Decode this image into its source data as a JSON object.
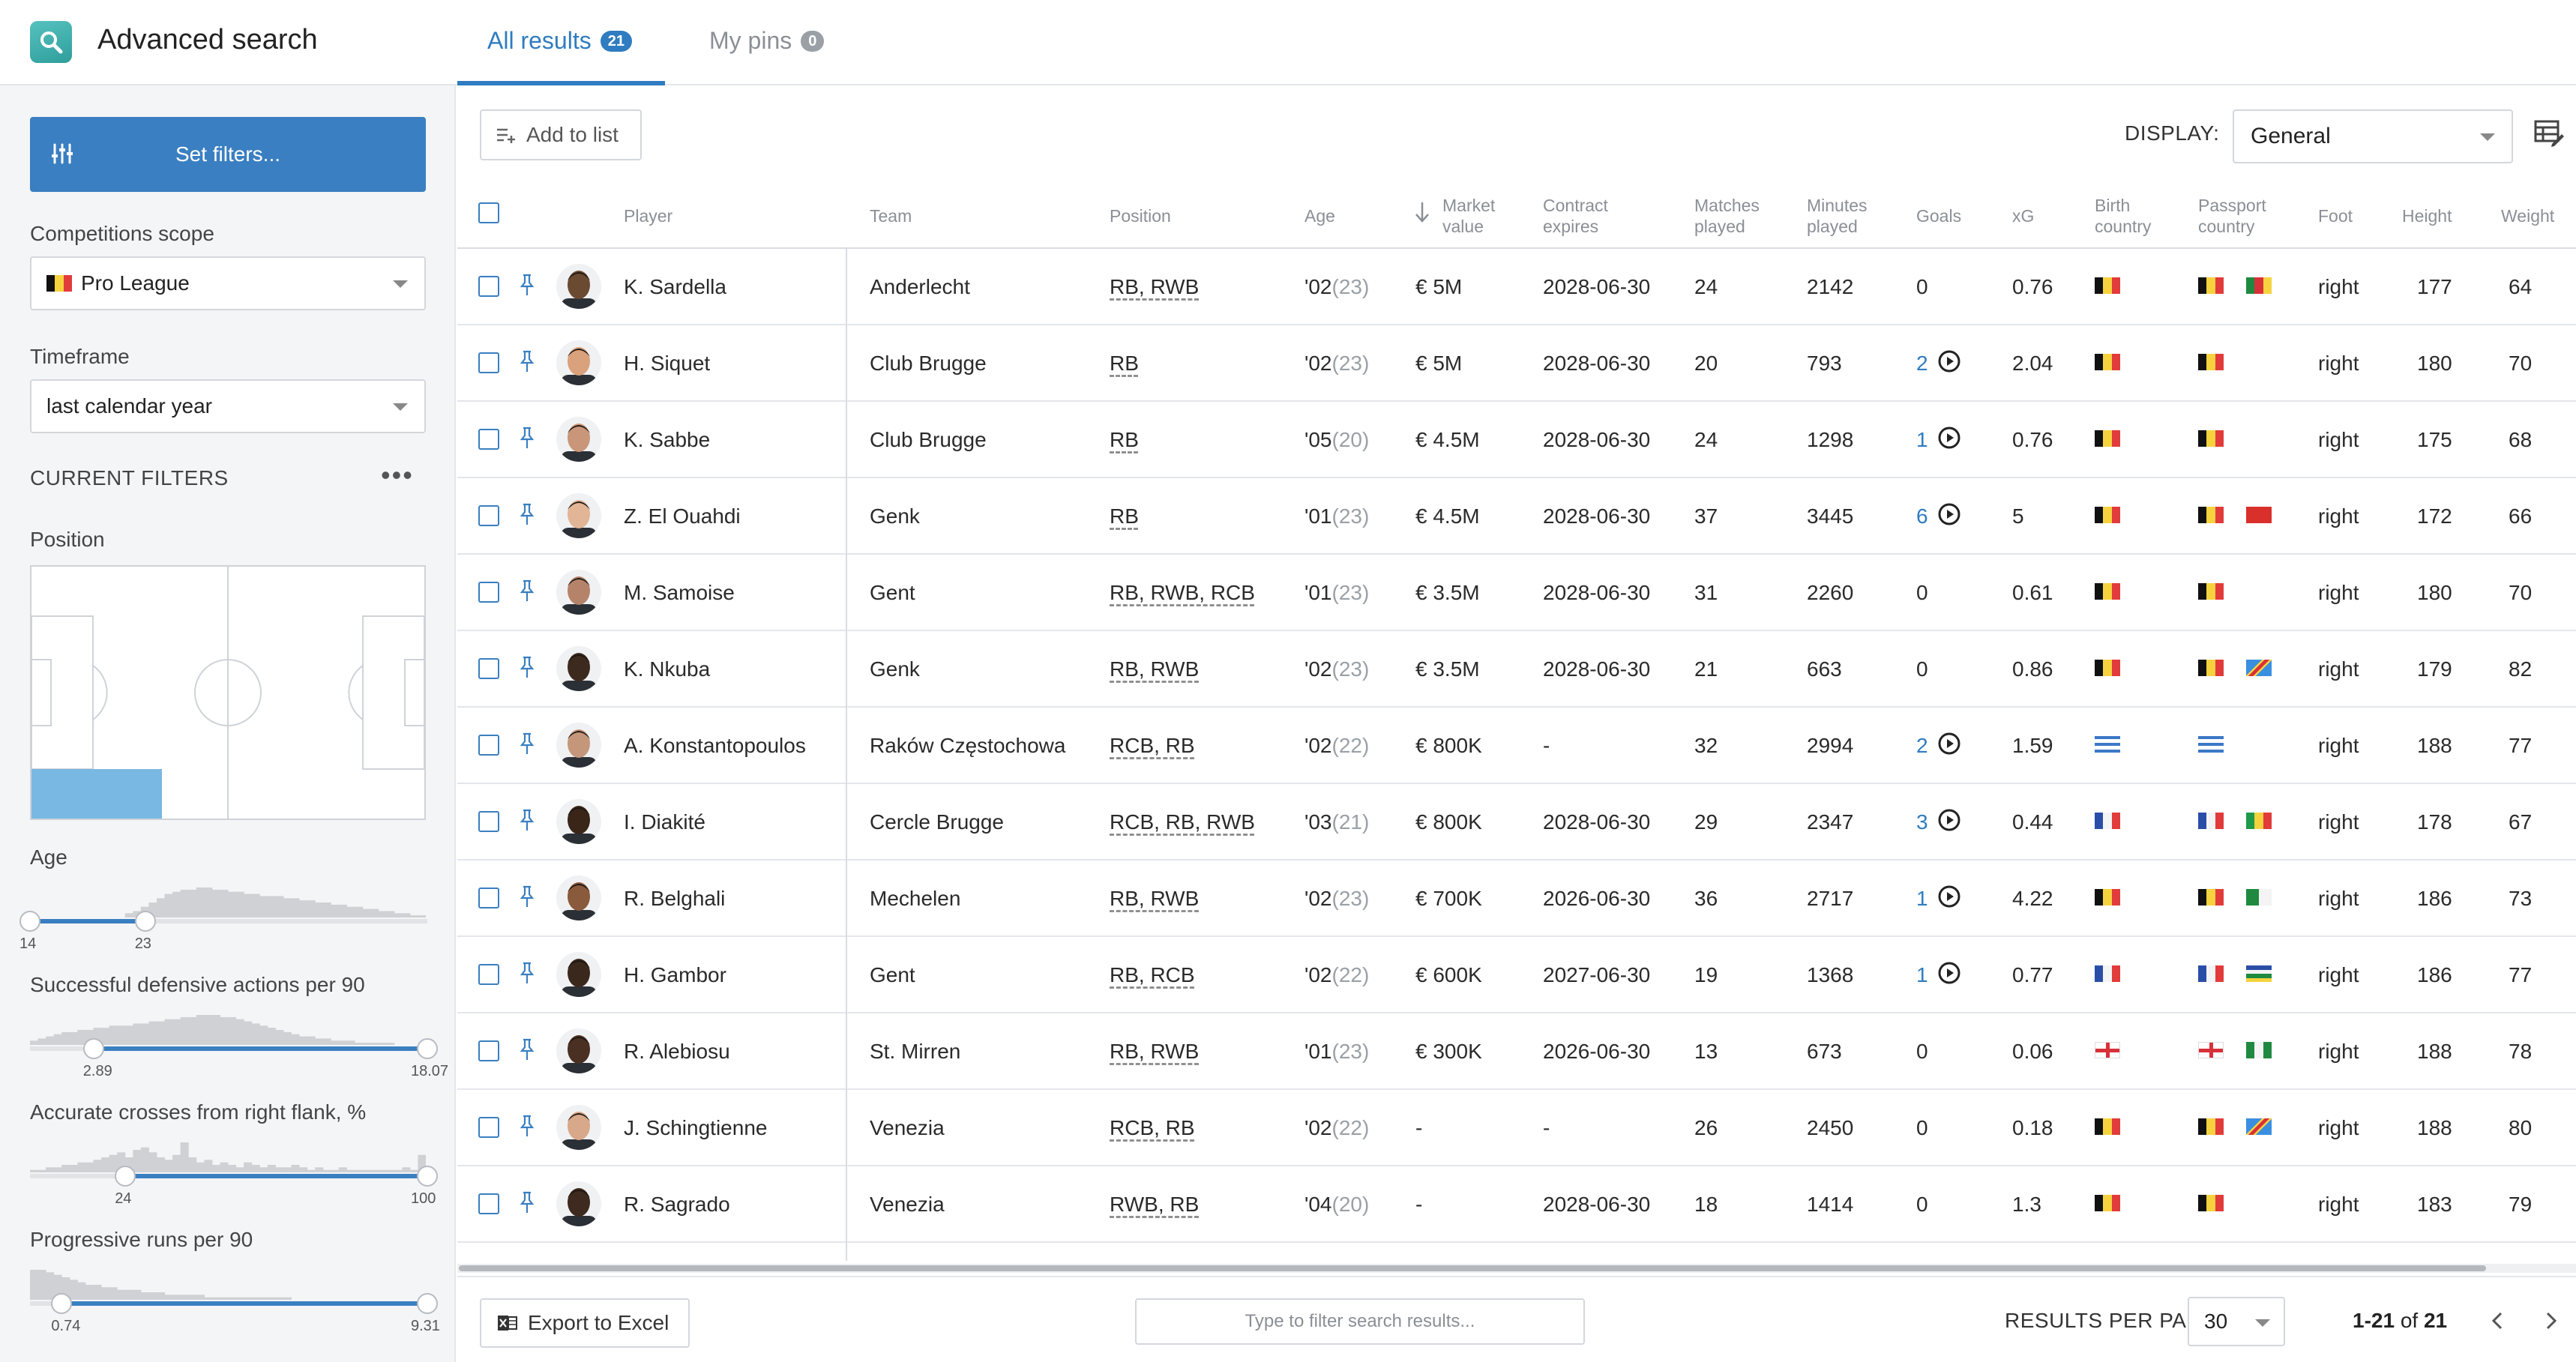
{
  "header": {
    "title": "Advanced search",
    "tabs": [
      {
        "label": "All results",
        "count": "21",
        "active": true
      },
      {
        "label": "My pins",
        "count": "0",
        "active": false
      }
    ]
  },
  "sidebar": {
    "set_filters_label": "Set filters...",
    "competitions_label": "Competitions scope",
    "competition_value": "Pro League",
    "timeframe_label": "Timeframe",
    "timeframe_value": "last calendar year",
    "current_filters_label": "CURRENT FILTERS",
    "position_label": "Position",
    "filters": [
      {
        "label": "Age",
        "min_label": "14",
        "max_label": "23",
        "low": 0.0,
        "high": 0.29
      },
      {
        "label": "Successful defensive actions per 90",
        "min_label": "2.89",
        "max_label": "18.07",
        "low": 0.16,
        "high": 1.0
      },
      {
        "label": "Accurate crosses from right flank, %",
        "min_label": "24",
        "max_label": "100",
        "low": 0.24,
        "high": 1.0
      },
      {
        "label": "Progressive runs per 90",
        "min_label": "0.74",
        "max_label": "9.31",
        "low": 0.08,
        "high": 1.0
      }
    ]
  },
  "toolbar": {
    "add_to_list_label": "Add to list",
    "display_label": "DISPLAY:",
    "display_value": "General"
  },
  "table": {
    "columns": {
      "player": "Player",
      "team": "Team",
      "position": "Position",
      "age": "Age",
      "market_value_1": "Market",
      "market_value_2": "value",
      "contract_1": "Contract",
      "contract_2": "expires",
      "matches_1": "Matches",
      "matches_2": "played",
      "minutes_1": "Minutes",
      "minutes_2": "played",
      "goals": "Goals",
      "xg": "xG",
      "birth_1": "Birth",
      "birth_2": "country",
      "passport_1": "Passport",
      "passport_2": "country",
      "foot": "Foot",
      "height": "Height",
      "weight": "Weight"
    },
    "rows": [
      {
        "player": "K. Sardella",
        "team": "Anderlecht",
        "position": "RB, RWB",
        "birth_year": "'02",
        "age": "(23)",
        "market_value": "€ 5M",
        "contract": "2028-06-30",
        "matches": "24",
        "minutes": "2142",
        "goals": "0",
        "goals_link": false,
        "xg": "0.76",
        "birth_flag": "be",
        "passport_flags": [
          "be",
          "cm"
        ],
        "foot": "right",
        "height": "177",
        "weight": "64",
        "skin": "#6b4a32"
      },
      {
        "player": "H. Siquet",
        "team": "Club Brugge",
        "position": "RB",
        "birth_year": "'02",
        "age": "(23)",
        "market_value": "€ 5M",
        "contract": "2028-06-30",
        "matches": "20",
        "minutes": "793",
        "goals": "2",
        "goals_link": true,
        "xg": "2.04",
        "birth_flag": "be",
        "passport_flags": [
          "be"
        ],
        "foot": "right",
        "height": "180",
        "weight": "70",
        "skin": "#d9a27c"
      },
      {
        "player": "K. Sabbe",
        "team": "Club Brugge",
        "position": "RB",
        "birth_year": "'05",
        "age": "(20)",
        "market_value": "€ 4.5M",
        "contract": "2028-06-30",
        "matches": "24",
        "minutes": "1298",
        "goals": "1",
        "goals_link": true,
        "xg": "0.76",
        "birth_flag": "be",
        "passport_flags": [
          "be"
        ],
        "foot": "right",
        "height": "175",
        "weight": "68",
        "skin": "#c9967a"
      },
      {
        "player": "Z. El Ouahdi",
        "team": "Genk",
        "position": "RB",
        "birth_year": "'01",
        "age": "(23)",
        "market_value": "€ 4.5M",
        "contract": "2028-06-30",
        "matches": "37",
        "minutes": "3445",
        "goals": "6",
        "goals_link": true,
        "xg": "5",
        "birth_flag": "be",
        "passport_flags": [
          "be",
          "ma"
        ],
        "foot": "right",
        "height": "172",
        "weight": "66",
        "skin": "#e1b596"
      },
      {
        "player": "M. Samoise",
        "team": "Gent",
        "position": "RB, RWB, RCB",
        "birth_year": "'01",
        "age": "(23)",
        "market_value": "€ 3.5M",
        "contract": "2028-06-30",
        "matches": "31",
        "minutes": "2260",
        "goals": "0",
        "goals_link": false,
        "xg": "0.61",
        "birth_flag": "be",
        "passport_flags": [
          "be"
        ],
        "foot": "right",
        "height": "180",
        "weight": "70",
        "skin": "#b5836a"
      },
      {
        "player": "K. Nkuba",
        "team": "Genk",
        "position": "RB, RWB",
        "birth_year": "'02",
        "age": "(23)",
        "market_value": "€ 3.5M",
        "contract": "2028-06-30",
        "matches": "21",
        "minutes": "663",
        "goals": "0",
        "goals_link": false,
        "xg": "0.86",
        "birth_flag": "be",
        "passport_flags": [
          "be",
          "cd"
        ],
        "foot": "right",
        "height": "179",
        "weight": "82",
        "skin": "#3d2a1f"
      },
      {
        "player": "A. Konstantopoulos",
        "team": "Raków Częstochowa",
        "position": "RCB, RB",
        "birth_year": "'02",
        "age": "(22)",
        "market_value": "€ 800K",
        "contract": "-",
        "matches": "32",
        "minutes": "2994",
        "goals": "2",
        "goals_link": true,
        "xg": "1.59",
        "birth_flag": "gr",
        "passport_flags": [
          "gr"
        ],
        "foot": "right",
        "height": "188",
        "weight": "77",
        "skin": "#c4977b"
      },
      {
        "player": "I. Diakité",
        "team": "Cercle Brugge",
        "position": "RCB, RB, RWB",
        "birth_year": "'03",
        "age": "(21)",
        "market_value": "€ 800K",
        "contract": "2028-06-30",
        "matches": "29",
        "minutes": "2347",
        "goals": "3",
        "goals_link": true,
        "xg": "0.44",
        "birth_flag": "fr",
        "passport_flags": [
          "fr",
          "ml"
        ],
        "foot": "right",
        "height": "178",
        "weight": "67",
        "skin": "#3a2619"
      },
      {
        "player": "R. Belghali",
        "team": "Mechelen",
        "position": "RB, RWB",
        "birth_year": "'02",
        "age": "(23)",
        "market_value": "€ 700K",
        "contract": "2026-06-30",
        "matches": "36",
        "minutes": "2717",
        "goals": "1",
        "goals_link": true,
        "xg": "4.22",
        "birth_flag": "be",
        "passport_flags": [
          "be",
          "dz"
        ],
        "foot": "right",
        "height": "186",
        "weight": "73",
        "skin": "#8a5a3c"
      },
      {
        "player": "H. Gambor",
        "team": "Gent",
        "position": "RB, RCB",
        "birth_year": "'02",
        "age": "(22)",
        "market_value": "€ 600K",
        "contract": "2027-06-30",
        "matches": "19",
        "minutes": "1368",
        "goals": "1",
        "goals_link": true,
        "xg": "0.77",
        "birth_flag": "fr",
        "passport_flags": [
          "fr",
          "cf"
        ],
        "foot": "right",
        "height": "186",
        "weight": "77",
        "skin": "#3b281d"
      },
      {
        "player": "R. Alebiosu",
        "team": "St. Mirren",
        "position": "RB, RWB",
        "birth_year": "'01",
        "age": "(23)",
        "market_value": "€ 300K",
        "contract": "2026-06-30",
        "matches": "13",
        "minutes": "673",
        "goals": "0",
        "goals_link": false,
        "xg": "0.06",
        "birth_flag": "en",
        "passport_flags": [
          "en",
          "ng"
        ],
        "foot": "right",
        "height": "188",
        "weight": "78",
        "skin": "#4a3022"
      },
      {
        "player": "J. Schingtienne",
        "team": "Venezia",
        "position": "RCB, RB",
        "birth_year": "'02",
        "age": "(22)",
        "market_value": "-",
        "contract": "-",
        "matches": "26",
        "minutes": "2450",
        "goals": "0",
        "goals_link": false,
        "xg": "0.18",
        "birth_flag": "be",
        "passport_flags": [
          "be",
          "cd"
        ],
        "foot": "right",
        "height": "188",
        "weight": "80",
        "skin": "#d8a88a"
      },
      {
        "player": "R. Sagrado",
        "team": "Venezia",
        "position": "RWB, RB",
        "birth_year": "'04",
        "age": "(20)",
        "market_value": "-",
        "contract": "2028-06-30",
        "matches": "18",
        "minutes": "1414",
        "goals": "0",
        "goals_link": false,
        "xg": "1.3",
        "birth_flag": "be",
        "passport_flags": [
          "be"
        ],
        "foot": "right",
        "height": "183",
        "weight": "79",
        "skin": "#3e2a1e"
      }
    ]
  },
  "footer": {
    "export_label": "Export to Excel",
    "filter_placeholder": "Type to filter search results...",
    "rpp_label": "RESULTS PER PAGE:",
    "rpp_value": "30",
    "range_bold": "1-21",
    "range_of": "of",
    "range_total": "21"
  },
  "colors": {
    "accent": "#3a7fc1",
    "link": "#2f7cc0",
    "sidebar_bg": "#f4f5f7",
    "pitch_zone": "#79b8e2"
  }
}
